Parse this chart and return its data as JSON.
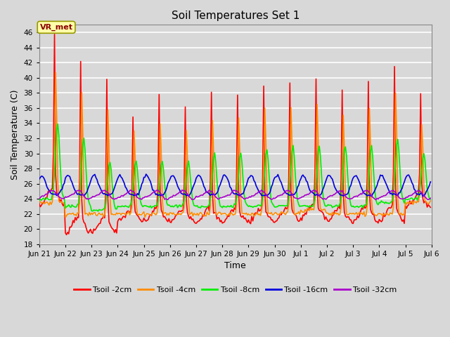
{
  "title": "Soil Temperatures Set 1",
  "xlabel": "Time",
  "ylabel": "Soil Temperature (C)",
  "ylim": [
    18,
    47
  ],
  "yticks": [
    18,
    20,
    22,
    24,
    26,
    28,
    30,
    32,
    34,
    36,
    38,
    40,
    42,
    44,
    46
  ],
  "background_color": "#d8d8d8",
  "plot_bg_color": "#d8d8d8",
  "grid_color": "#ffffff",
  "annotation_text": "VR_met",
  "annotation_color": "#8b0000",
  "annotation_bg": "#ffffaa",
  "annotation_edge": "#999900",
  "series": [
    {
      "label": "Tsoil -2cm",
      "color": "#ff0000",
      "lw": 1.2
    },
    {
      "label": "Tsoil -4cm",
      "color": "#ff8c00",
      "lw": 1.2
    },
    {
      "label": "Tsoil -8cm",
      "color": "#00ee00",
      "lw": 1.2
    },
    {
      "label": "Tsoil -16cm",
      "color": "#0000dd",
      "lw": 1.2
    },
    {
      "label": "Tsoil -32cm",
      "color": "#aa00cc",
      "lw": 1.2
    }
  ],
  "xlim_start": 0,
  "xlim_end": 15,
  "tick_positions": [
    0,
    1,
    2,
    3,
    4,
    5,
    6,
    7,
    8,
    9,
    10,
    11,
    12,
    13,
    14,
    15
  ],
  "tick_labels": [
    "Jun 21",
    "Jun 22",
    "Jun 23",
    "Jun 24",
    "Jun 25",
    "Jun 26",
    "Jun 27",
    "Jun 28",
    "Jun 29",
    "Jun 30",
    "Jul 1",
    "Jul 2",
    "Jul 3",
    "Jul 4",
    "Jul 5",
    "Jul 6"
  ]
}
